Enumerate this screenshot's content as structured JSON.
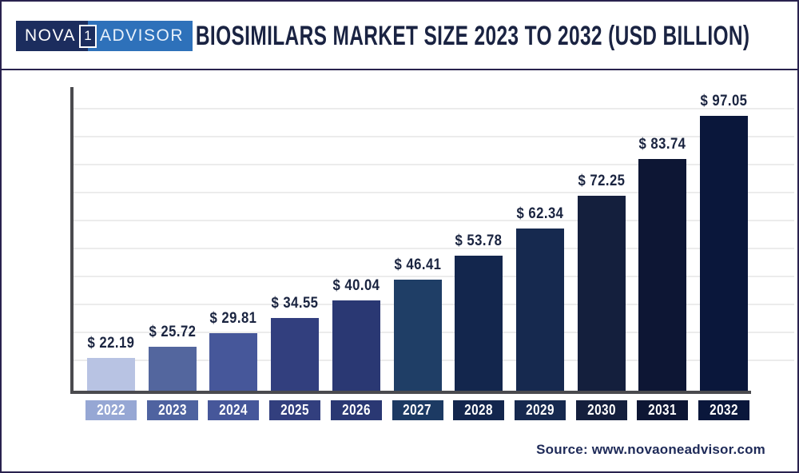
{
  "brand": {
    "nova": "NOVA",
    "one": "1",
    "advisor": "ADVISOR",
    "navy": "#1c2d5e",
    "blue": "#2e71ba"
  },
  "header": {
    "title": "BIOSIMILARS MARKET SIZE 2023 TO 2032 (USD BILLION)"
  },
  "footer": {
    "source": "Source: www.novaoneadvisor.com"
  },
  "chart_data": {
    "type": "bar",
    "title": "Biosimilars Market Size 2023 to 2032 (USD Billion)",
    "categories": [
      "2022",
      "2023",
      "2024",
      "2025",
      "2026",
      "2027",
      "2028",
      "2029",
      "2030",
      "2031",
      "2032"
    ],
    "values": [
      22.19,
      25.72,
      29.81,
      34.55,
      40.04,
      46.41,
      53.78,
      62.34,
      72.25,
      83.74,
      97.05
    ],
    "value_prefix": "$ ",
    "unit": "USD Billion",
    "xlabel": "",
    "ylabel": "",
    "ylim": [
      12,
      106
    ],
    "grid": "horizontal",
    "legend": "none",
    "bar_colors": [
      "#b8c3e3",
      "#53669e",
      "#46579a",
      "#323f7e",
      "#2a3873",
      "#1f3e66",
      "#13264d",
      "#16294f",
      "#141f3d",
      "#0d1634",
      "#0a173b"
    ],
    "year_box_colors": [
      "#96a7d4",
      "#4f63a0",
      "#46579a",
      "#323f7e",
      "#2a3873",
      "#1c3a63",
      "#13264d",
      "#16294f",
      "#141f3d",
      "#0d1634",
      "#0a173b"
    ],
    "value_label_color": "#1a2440",
    "axis_color": "#4a4a4e",
    "grid_color": "#ececec"
  }
}
